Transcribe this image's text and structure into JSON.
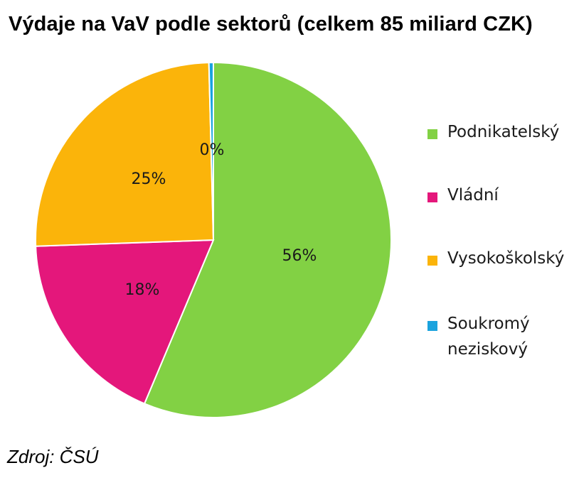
{
  "chart_data": {
    "type": "pie",
    "title": "Výdaje na VaV podle sektorů (celkem 85 miliard CZK)",
    "slices": [
      {
        "name": "Podnikatelský",
        "value": 56,
        "label": "56%",
        "color": "#82d144"
      },
      {
        "name": "Vládní",
        "value": 18,
        "label": "18%",
        "color": "#e4177b"
      },
      {
        "name": "Vysokoškolský",
        "value": 25,
        "label": "25%",
        "color": "#fbb40a"
      },
      {
        "name": "Soukromý neziskový",
        "value": 0.4,
        "label": "0%",
        "color": "#1aa3de"
      }
    ],
    "legend_position": "right"
  },
  "source": "Zdroj: ČSÚ"
}
